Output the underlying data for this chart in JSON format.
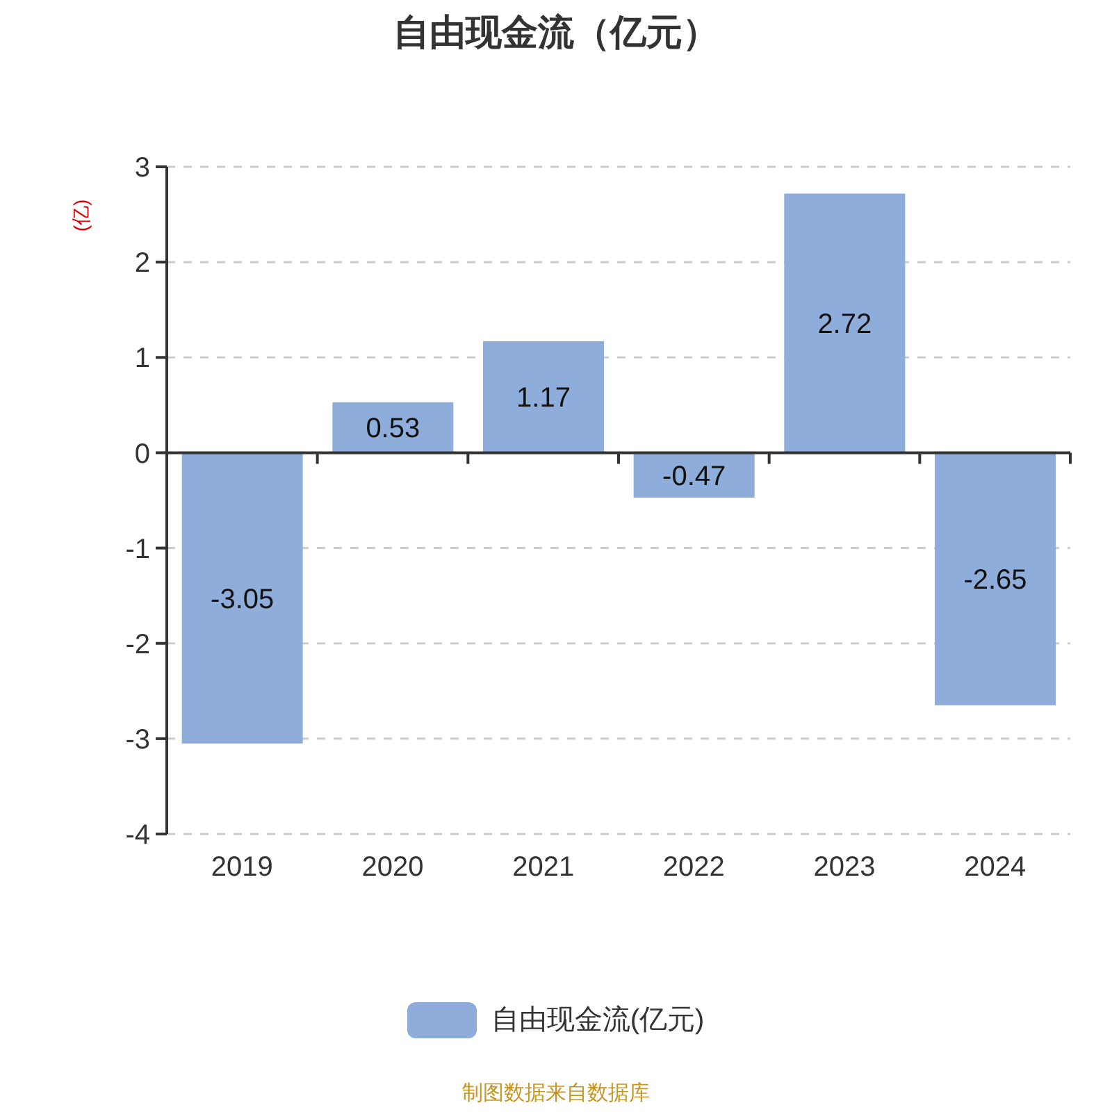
{
  "chart_data": {
    "type": "bar",
    "title": "自由现金流（亿元）",
    "ylabel": "(亿)",
    "categories": [
      "2019",
      "2020",
      "2021",
      "2022",
      "2023",
      "2024"
    ],
    "series": [
      {
        "name": "自由现金流(亿元)",
        "color": "#8eaddb",
        "values": [
          -3.05,
          0.53,
          1.17,
          -0.47,
          2.72,
          -2.65
        ]
      }
    ],
    "ylim": [
      -4,
      3
    ],
    "yticks": [
      -4,
      -3,
      -2,
      -1,
      0,
      1,
      2,
      3
    ],
    "grid": "y",
    "legend": "bottom",
    "data_labels": true,
    "annotations": [
      "制图数据来自数据库"
    ]
  }
}
